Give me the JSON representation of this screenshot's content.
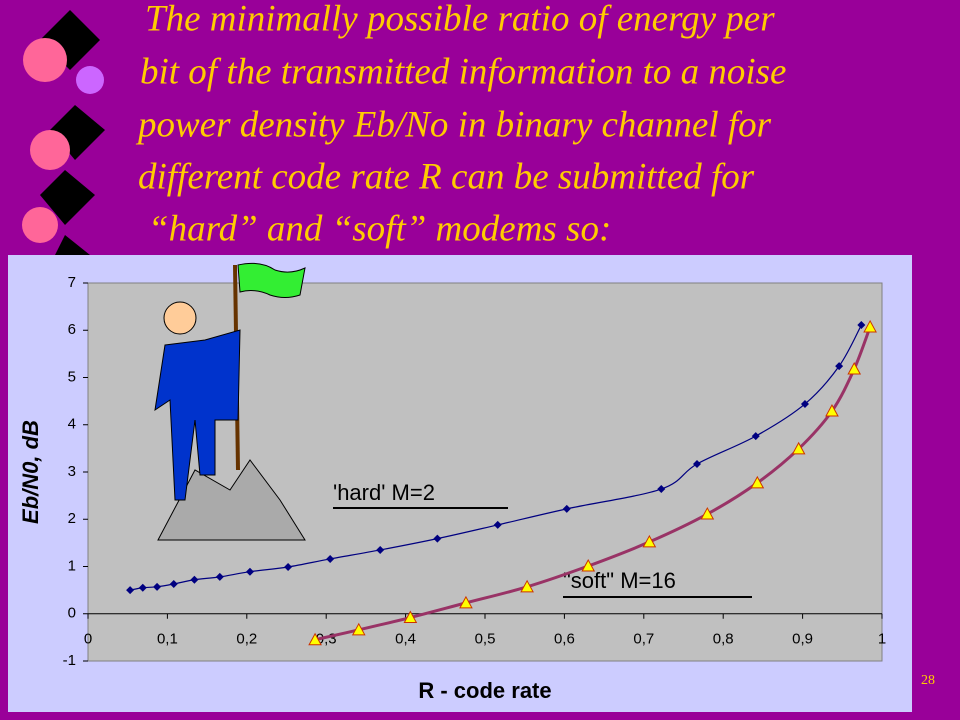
{
  "header": {
    "title_lines": [
      "The minimally  possible ratio  of energy per",
      "bit of the transmitted information to a noise",
      "power density  Eb/No in  binary channel for",
      "different code rate R can be submitted for",
      "“hard” and “soft”  modems   so:"
    ]
  },
  "page_number": "28",
  "chart_data": {
    "type": "line",
    "x_label": "R -   code rate",
    "y_label": "Eb/N0, dB",
    "xlim": [
      0,
      1
    ],
    "ylim": [
      -1,
      7
    ],
    "xticks": [
      0,
      {
        "value": 0.1,
        "label": "0,1"
      },
      {
        "value": 0.2,
        "label": "0,2"
      },
      {
        "value": 0.3,
        "label": "0,3"
      },
      {
        "value": 0.4,
        "label": "0,4"
      },
      {
        "value": 0.5,
        "label": "0,5"
      },
      {
        "value": 0.6,
        "label": "0,6"
      },
      {
        "value": 0.7,
        "label": "0,7"
      },
      {
        "value": 0.8,
        "label": "0,8"
      },
      {
        "value": 0.9,
        "label": "0,9"
      },
      1
    ],
    "yticks": [
      -1,
      0,
      1,
      2,
      3,
      4,
      5,
      6,
      7
    ],
    "grid": false,
    "annotations": [
      "'hard'  M=2",
      "\"soft\"  M=16"
    ],
    "series": [
      {
        "name": "'hard'  M=2",
        "color": "#000080",
        "line_color": "#000080",
        "marker": "diamond",
        "x": [
          0.053,
          0.069,
          0.087,
          0.108,
          0.134,
          0.166,
          0.204,
          0.252,
          0.305,
          0.368,
          0.44,
          0.516,
          0.603,
          0.722,
          0.767,
          0.841,
          0.903,
          0.946,
          0.974
        ],
        "values": [
          0.5,
          0.55,
          0.57,
          0.63,
          0.72,
          0.78,
          0.89,
          0.99,
          1.16,
          1.35,
          1.59,
          1.88,
          2.22,
          2.64,
          3.17,
          3.76,
          4.44,
          5.24,
          6.11
        ]
      },
      {
        "name": "\"soft\"  M=16",
        "color": "#ffff00",
        "line_color": "#993366",
        "marker": "triangle",
        "x": [
          0.286,
          0.341,
          0.406,
          0.476,
          0.553,
          0.63,
          0.707,
          0.78,
          0.843,
          0.895,
          0.937,
          0.965,
          0.985
        ],
        "values": [
          -0.55,
          -0.34,
          -0.08,
          0.23,
          0.57,
          1.01,
          1.52,
          2.11,
          2.77,
          3.49,
          4.29,
          5.18,
          6.07
        ]
      }
    ]
  }
}
